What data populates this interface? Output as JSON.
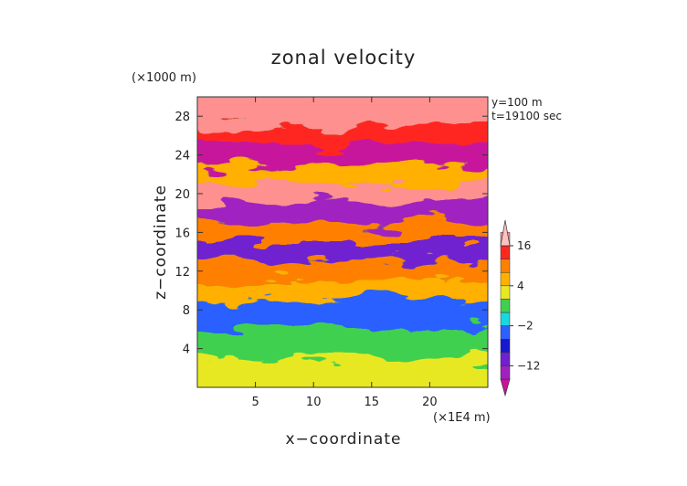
{
  "chart_data": {
    "type": "heatmap",
    "title": "zonal velocity",
    "xlabel": "x−coordinate",
    "ylabel": "z−coordinate",
    "x_unit_label": "(×1E4 m)",
    "y_unit_label": "(×1000 m)",
    "annotations": [
      "y=100 m",
      "t=19100 sec"
    ],
    "xlim": [
      0,
      25
    ],
    "ylim": [
      0,
      30
    ],
    "x_ticks": [
      5,
      10,
      15,
      20
    ],
    "y_ticks": [
      4,
      8,
      12,
      16,
      20,
      24,
      28
    ],
    "x_tick_labels": [
      "5",
      "10",
      "15",
      "20"
    ],
    "y_tick_labels": [
      "4",
      "8",
      "12",
      "16",
      "20",
      "24",
      "28"
    ],
    "colorbar": {
      "levels": [
        -20,
        -16,
        -12,
        -8,
        -4,
        -2,
        0,
        2,
        4,
        8,
        12,
        16,
        20
      ],
      "tick_values": [
        16,
        4,
        -2,
        -12
      ],
      "tick_labels": [
        "16",
        "4",
        "−2",
        "−12"
      ],
      "colors": [
        "#c8149c",
        "#a020c0",
        "#7020d0",
        "#1818d0",
        "#2c60ff",
        "#18d8e0",
        "#40d050",
        "#e8e820",
        "#ffb000",
        "#ff8000",
        "#ff2820",
        "#ff9090",
        "#ffc0c0"
      ]
    },
    "bands": [
      {
        "z": [
          0,
          3
        ],
        "value": 3
      },
      {
        "z": [
          3,
          6
        ],
        "value": 1
      },
      {
        "z": [
          6,
          9
        ],
        "value": -4
      },
      {
        "z": [
          9,
          11
        ],
        "value": 6
      },
      {
        "z": [
          11,
          13
        ],
        "value": 8
      },
      {
        "z": [
          13,
          15
        ],
        "value": -10
      },
      {
        "z": [
          15,
          17
        ],
        "value": 10
      },
      {
        "z": [
          17,
          19
        ],
        "value": -16
      },
      {
        "z": [
          19,
          21
        ],
        "value": 18
      },
      {
        "z": [
          21,
          23
        ],
        "value": 6
      },
      {
        "z": [
          23,
          25
        ],
        "value": -18
      },
      {
        "z": [
          25,
          27
        ],
        "value": 12
      },
      {
        "z": [
          27,
          30
        ],
        "value": 18
      }
    ]
  }
}
